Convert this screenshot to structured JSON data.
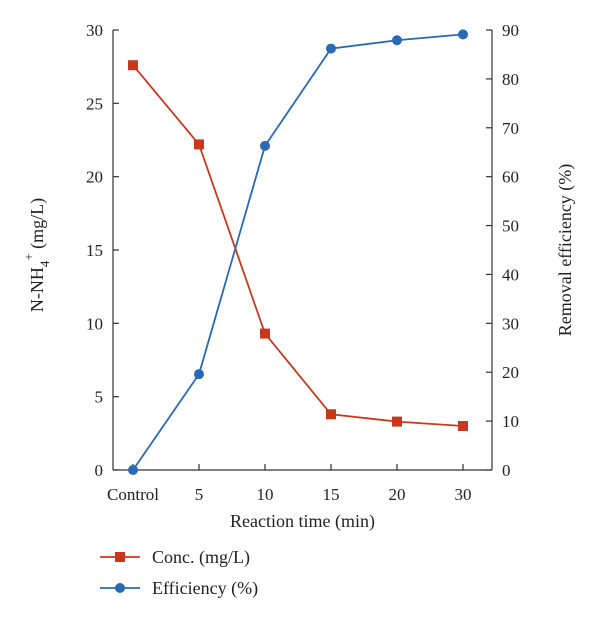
{
  "chart_data": {
    "type": "line",
    "title": "",
    "categories": [
      "Control",
      "5",
      "10",
      "15",
      "20",
      "30"
    ],
    "xlabel": "Reaction time (min)",
    "ylabel_left": {
      "base": "N-NH",
      "sub": "4",
      "sup": "+",
      "unit": " (mg/L)"
    },
    "ylabel_right": "Removal efficiency (%)",
    "ylim_left": [
      0,
      30
    ],
    "yticks_left": [
      0,
      5,
      10,
      15,
      20,
      25,
      30
    ],
    "ylim_right": [
      0,
      90
    ],
    "yticks_right": [
      0,
      10,
      20,
      30,
      40,
      50,
      60,
      70,
      80,
      90
    ],
    "grid": false,
    "legend_position": "bottom-left",
    "series": [
      {
        "name": "Conc. (mg/L)",
        "axis": "left",
        "marker": "square",
        "color": "#c8391b",
        "values": [
          27.6,
          22.2,
          9.3,
          3.8,
          3.3,
          3.0
        ]
      },
      {
        "name": "Efficiency (%)",
        "axis": "right",
        "marker": "circle",
        "color": "#2a6ab5",
        "values": [
          0,
          19.6,
          66.3,
          86.2,
          87.9,
          89.1
        ]
      }
    ]
  }
}
